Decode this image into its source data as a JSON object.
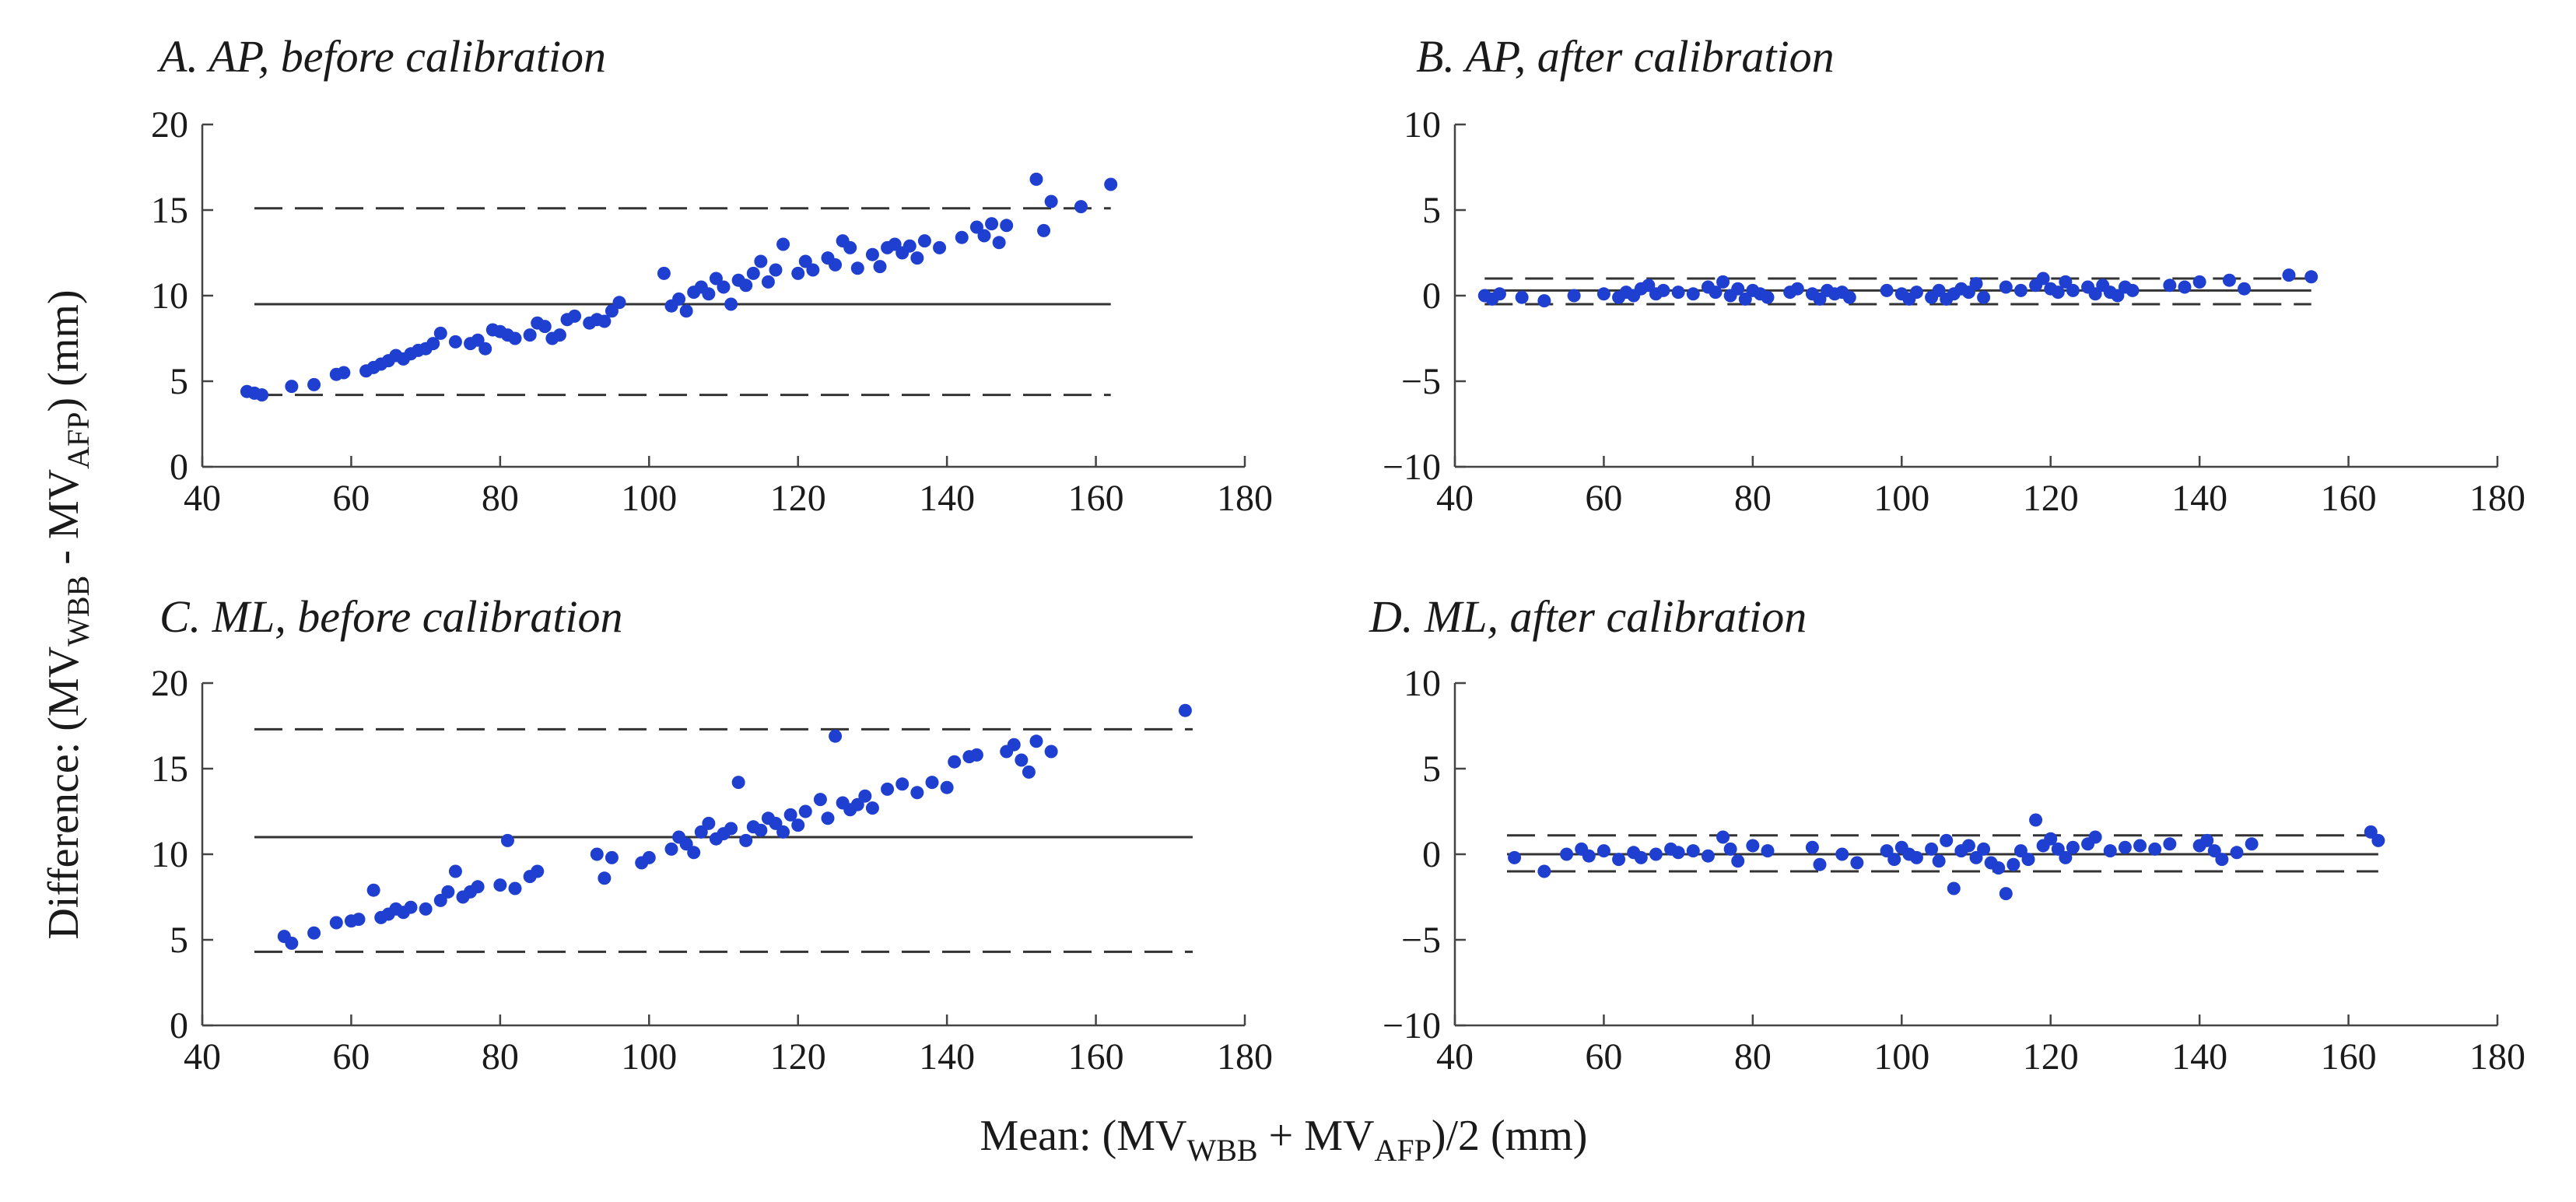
{
  "figure": {
    "ylabel": {
      "prefix": "Difference: (MV",
      "sub1": "WBB",
      "mid": " - MV",
      "sub2": "AFP",
      "suffix": ") (mm)"
    },
    "xlabel": {
      "prefix": "Mean: (MV",
      "sub1": "WBB",
      "mid": " + MV",
      "sub2": "AFP",
      "suffix": ")/2 (mm)"
    }
  },
  "colors": {
    "points": "#1f3fd1",
    "lines": "#333333"
  },
  "chart_data": [
    {
      "id": "A",
      "type": "scatter",
      "title": "A.  AP, before calibration",
      "xlim": [
        40,
        180
      ],
      "ylim": [
        0,
        20
      ],
      "xticks": [
        40,
        60,
        80,
        100,
        120,
        140,
        160,
        180
      ],
      "yticks": [
        0,
        5,
        10,
        15,
        20
      ],
      "mean_line": 9.5,
      "limits_of_agreement": [
        4.2,
        15.1
      ],
      "line_x_range": [
        47,
        162
      ],
      "points": [
        [
          46,
          4.4
        ],
        [
          47,
          4.3
        ],
        [
          48,
          4.2
        ],
        [
          52,
          4.7
        ],
        [
          55,
          4.8
        ],
        [
          58,
          5.4
        ],
        [
          59,
          5.5
        ],
        [
          62,
          5.6
        ],
        [
          63,
          5.8
        ],
        [
          64,
          6
        ],
        [
          65,
          6.2
        ],
        [
          66,
          6.5
        ],
        [
          67,
          6.3
        ],
        [
          68,
          6.6
        ],
        [
          69,
          6.8
        ],
        [
          70,
          6.9
        ],
        [
          71,
          7.2
        ],
        [
          72,
          7.8
        ],
        [
          74,
          7.3
        ],
        [
          76,
          7.2
        ],
        [
          77,
          7.4
        ],
        [
          78,
          6.9
        ],
        [
          79,
          8
        ],
        [
          80,
          7.9
        ],
        [
          81,
          7.7
        ],
        [
          82,
          7.5
        ],
        [
          84,
          7.7
        ],
        [
          85,
          8.4
        ],
        [
          86,
          8.2
        ],
        [
          87,
          7.5
        ],
        [
          88,
          7.7
        ],
        [
          89,
          8.6
        ],
        [
          90,
          8.8
        ],
        [
          92,
          8.4
        ],
        [
          93,
          8.6
        ],
        [
          94,
          8.5
        ],
        [
          95,
          9.1
        ],
        [
          96,
          9.6
        ],
        [
          102,
          11.3
        ],
        [
          103,
          9.4
        ],
        [
          104,
          9.8
        ],
        [
          105,
          9.1
        ],
        [
          106,
          10.2
        ],
        [
          107,
          10.5
        ],
        [
          108,
          10.1
        ],
        [
          109,
          11
        ],
        [
          110,
          10.5
        ],
        [
          111,
          9.5
        ],
        [
          112,
          10.9
        ],
        [
          113,
          10.6
        ],
        [
          114,
          11.3
        ],
        [
          115,
          12
        ],
        [
          116,
          10.8
        ],
        [
          117,
          11.5
        ],
        [
          118,
          13
        ],
        [
          120,
          11.3
        ],
        [
          121,
          12
        ],
        [
          122,
          11.5
        ],
        [
          124,
          12.2
        ],
        [
          125,
          11.8
        ],
        [
          126,
          13.2
        ],
        [
          127,
          12.8
        ],
        [
          128,
          11.6
        ],
        [
          130,
          12.4
        ],
        [
          131,
          11.7
        ],
        [
          132,
          12.8
        ],
        [
          133,
          13
        ],
        [
          134,
          12.5
        ],
        [
          135,
          12.9
        ],
        [
          136,
          12.2
        ],
        [
          137,
          13.2
        ],
        [
          139,
          12.8
        ],
        [
          142,
          13.4
        ],
        [
          144,
          14
        ],
        [
          145,
          13.5
        ],
        [
          146,
          14.2
        ],
        [
          147,
          13.1
        ],
        [
          148,
          14.1
        ],
        [
          152,
          16.8
        ],
        [
          153,
          13.8
        ],
        [
          154,
          15.5
        ],
        [
          158,
          15.2
        ],
        [
          162,
          16.5
        ]
      ]
    },
    {
      "id": "B",
      "type": "scatter",
      "title": "B.  AP, after calibration",
      "xlim": [
        40,
        180
      ],
      "ylim": [
        -10,
        10
      ],
      "xticks": [
        40,
        60,
        80,
        100,
        120,
        140,
        160,
        180
      ],
      "yticks": [
        -10,
        -5,
        0,
        5,
        10
      ],
      "mean_line": 0.3,
      "limits_of_agreement": [
        -0.5,
        1.0
      ],
      "line_x_range": [
        44,
        155
      ],
      "points": [
        [
          44,
          0
        ],
        [
          45,
          -0.2
        ],
        [
          46,
          0.1
        ],
        [
          49,
          -0.1
        ],
        [
          52,
          -0.3
        ],
        [
          56,
          0
        ],
        [
          60,
          0.1
        ],
        [
          62,
          -0.1
        ],
        [
          63,
          0.2
        ],
        [
          64,
          0
        ],
        [
          65,
          0.4
        ],
        [
          66,
          0.6
        ],
        [
          67,
          0.1
        ],
        [
          68,
          0.3
        ],
        [
          70,
          0.2
        ],
        [
          72,
          0.1
        ],
        [
          74,
          0.5
        ],
        [
          75,
          0.2
        ],
        [
          76,
          0.8
        ],
        [
          77,
          0
        ],
        [
          78,
          0.4
        ],
        [
          79,
          -0.2
        ],
        [
          80,
          0.3
        ],
        [
          81,
          0.1
        ],
        [
          82,
          -0.1
        ],
        [
          85,
          0.2
        ],
        [
          86,
          0.4
        ],
        [
          88,
          0.1
        ],
        [
          89,
          -0.2
        ],
        [
          90,
          0.3
        ],
        [
          91,
          0.1
        ],
        [
          92,
          0.2
        ],
        [
          93,
          -0.1
        ],
        [
          98,
          0.3
        ],
        [
          100,
          0.1
        ],
        [
          101,
          -0.2
        ],
        [
          102,
          0.2
        ],
        [
          104,
          -0.1
        ],
        [
          105,
          0.3
        ],
        [
          106,
          -0.2
        ],
        [
          107,
          0.1
        ],
        [
          108,
          0.4
        ],
        [
          109,
          0.2
        ],
        [
          110,
          0.7
        ],
        [
          111,
          -0.1
        ],
        [
          114,
          0.5
        ],
        [
          116,
          0.3
        ],
        [
          118,
          0.6
        ],
        [
          119,
          1
        ],
        [
          120,
          0.4
        ],
        [
          121,
          0.2
        ],
        [
          122,
          0.8
        ],
        [
          123,
          0.3
        ],
        [
          125,
          0.5
        ],
        [
          126,
          0.1
        ],
        [
          127,
          0.6
        ],
        [
          128,
          0.2
        ],
        [
          129,
          0
        ],
        [
          130,
          0.5
        ],
        [
          131,
          0.3
        ],
        [
          136,
          0.6
        ],
        [
          138,
          0.5
        ],
        [
          140,
          0.8
        ],
        [
          144,
          0.9
        ],
        [
          146,
          0.4
        ],
        [
          152,
          1.2
        ],
        [
          155,
          1.1
        ]
      ]
    },
    {
      "id": "C",
      "type": "scatter",
      "title": "C.  ML, before calibration",
      "xlim": [
        40,
        180
      ],
      "ylim": [
        0,
        20
      ],
      "xticks": [
        40,
        60,
        80,
        100,
        120,
        140,
        160,
        180
      ],
      "yticks": [
        0,
        5,
        10,
        15,
        20
      ],
      "mean_line": 11.0,
      "limits_of_agreement": [
        4.3,
        17.3
      ],
      "line_x_range": [
        47,
        173
      ],
      "points": [
        [
          51,
          5.2
        ],
        [
          52,
          4.8
        ],
        [
          55,
          5.4
        ],
        [
          58,
          6
        ],
        [
          60,
          6.1
        ],
        [
          61,
          6.2
        ],
        [
          63,
          7.9
        ],
        [
          64,
          6.3
        ],
        [
          65,
          6.5
        ],
        [
          66,
          6.8
        ],
        [
          67,
          6.6
        ],
        [
          68,
          6.9
        ],
        [
          70,
          6.8
        ],
        [
          72,
          7.3
        ],
        [
          73,
          7.8
        ],
        [
          74,
          9
        ],
        [
          75,
          7.5
        ],
        [
          76,
          7.8
        ],
        [
          77,
          8.1
        ],
        [
          80,
          8.2
        ],
        [
          81,
          10.8
        ],
        [
          82,
          8
        ],
        [
          84,
          8.7
        ],
        [
          85,
          9
        ],
        [
          93,
          10
        ],
        [
          94,
          8.6
        ],
        [
          95,
          9.8
        ],
        [
          99,
          9.5
        ],
        [
          100,
          9.8
        ],
        [
          103,
          10.3
        ],
        [
          104,
          11
        ],
        [
          105,
          10.6
        ],
        [
          106,
          10.1
        ],
        [
          107,
          11.3
        ],
        [
          108,
          11.8
        ],
        [
          109,
          10.9
        ],
        [
          110,
          11.2
        ],
        [
          111,
          11.5
        ],
        [
          112,
          14.2
        ],
        [
          113,
          10.8
        ],
        [
          114,
          11.6
        ],
        [
          115,
          11.4
        ],
        [
          116,
          12.1
        ],
        [
          117,
          11.8
        ],
        [
          118,
          11.3
        ],
        [
          119,
          12.3
        ],
        [
          120,
          11.7
        ],
        [
          121,
          12.5
        ],
        [
          123,
          13.2
        ],
        [
          124,
          12.1
        ],
        [
          125,
          16.9
        ],
        [
          126,
          13
        ],
        [
          127,
          12.6
        ],
        [
          128,
          12.9
        ],
        [
          129,
          13.4
        ],
        [
          130,
          12.7
        ],
        [
          132,
          13.8
        ],
        [
          134,
          14.1
        ],
        [
          136,
          13.6
        ],
        [
          138,
          14.2
        ],
        [
          140,
          13.9
        ],
        [
          141,
          15.4
        ],
        [
          143,
          15.7
        ],
        [
          144,
          15.8
        ],
        [
          148,
          16
        ],
        [
          149,
          16.4
        ],
        [
          150,
          15.5
        ],
        [
          151,
          14.8
        ],
        [
          152,
          16.6
        ],
        [
          154,
          16
        ],
        [
          172,
          18.4
        ]
      ]
    },
    {
      "id": "D",
      "type": "scatter",
      "title": "D.  ML, after calibration",
      "xlim": [
        40,
        180
      ],
      "ylim": [
        -10,
        10
      ],
      "xticks": [
        40,
        60,
        80,
        100,
        120,
        140,
        160,
        180
      ],
      "yticks": [
        -10,
        -5,
        0,
        5,
        10
      ],
      "mean_line": 0.0,
      "limits_of_agreement": [
        -1.0,
        1.1
      ],
      "line_x_range": [
        47,
        164
      ],
      "points": [
        [
          48,
          -0.2
        ],
        [
          52,
          -1
        ],
        [
          55,
          0
        ],
        [
          57,
          0.3
        ],
        [
          58,
          -0.1
        ],
        [
          60,
          0.2
        ],
        [
          62,
          -0.3
        ],
        [
          64,
          0.1
        ],
        [
          65,
          -0.2
        ],
        [
          67,
          0
        ],
        [
          69,
          0.3
        ],
        [
          70,
          0.1
        ],
        [
          72,
          0.2
        ],
        [
          74,
          -0.1
        ],
        [
          76,
          1
        ],
        [
          77,
          0.3
        ],
        [
          78,
          -0.4
        ],
        [
          80,
          0.5
        ],
        [
          82,
          0.2
        ],
        [
          88,
          0.4
        ],
        [
          89,
          -0.6
        ],
        [
          92,
          0
        ],
        [
          94,
          -0.5
        ],
        [
          98,
          0.2
        ],
        [
          99,
          -0.3
        ],
        [
          100,
          0.4
        ],
        [
          101,
          0
        ],
        [
          102,
          -0.2
        ],
        [
          104,
          0.3
        ],
        [
          105,
          -0.4
        ],
        [
          106,
          0.8
        ],
        [
          107,
          -2
        ],
        [
          108,
          0.2
        ],
        [
          109,
          0.5
        ],
        [
          110,
          -0.2
        ],
        [
          111,
          0.3
        ],
        [
          112,
          -0.5
        ],
        [
          113,
          -0.8
        ],
        [
          114,
          -2.3
        ],
        [
          115,
          -0.6
        ],
        [
          116,
          0.2
        ],
        [
          117,
          -0.3
        ],
        [
          118,
          2
        ],
        [
          119,
          0.5
        ],
        [
          120,
          0.9
        ],
        [
          121,
          0.3
        ],
        [
          122,
          -0.2
        ],
        [
          123,
          0.4
        ],
        [
          125,
          0.6
        ],
        [
          126,
          1
        ],
        [
          128,
          0.2
        ],
        [
          130,
          0.4
        ],
        [
          132,
          0.5
        ],
        [
          134,
          0.3
        ],
        [
          136,
          0.6
        ],
        [
          140,
          0.5
        ],
        [
          141,
          0.8
        ],
        [
          142,
          0.2
        ],
        [
          143,
          -0.3
        ],
        [
          145,
          0.1
        ],
        [
          147,
          0.6
        ],
        [
          163,
          1.3
        ],
        [
          164,
          0.8
        ]
      ]
    }
  ]
}
